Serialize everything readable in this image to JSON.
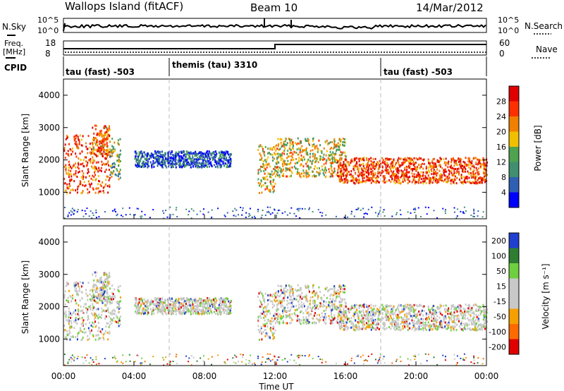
{
  "header": {
    "station": "Wallops Island (fitACF)",
    "beam": "Beam 10",
    "date": "14/Mar/2012"
  },
  "noise_panel": {
    "left_label": "N.Sky",
    "right_label": "N.Search",
    "left_ticks": [
      "10^5",
      "10^0"
    ],
    "right_ticks": [
      "10^5",
      "10^0"
    ]
  },
  "freq_panel": {
    "left_label_line1": "Freq.",
    "left_label_line2": "[MHz]",
    "right_label": "Nave",
    "left_ticks": [
      "18",
      "8"
    ],
    "right_ticks": [
      "60",
      "0"
    ],
    "cpid_label": "CPID"
  },
  "cpid_segments": [
    {
      "name": "tau (fast) -503",
      "start_hour": 0
    },
    {
      "name": "themis (tau) 3310",
      "start_hour": 6
    },
    {
      "name": "tau (fast) -503",
      "start_hour": 18
    }
  ],
  "colors": {
    "power": [
      "#0000ff",
      "#2f5fb2",
      "#3f8f70",
      "#4fa34f",
      "#f0c000",
      "#f08000",
      "#ff3000",
      "#e00000"
    ],
    "velocity": [
      "#1f3fd0",
      "#2e7d32",
      "#6fcf3f",
      "#c8c8c8",
      "#c8c8c8",
      "#f5a000",
      "#ff6a00",
      "#e00000"
    ]
  },
  "chart_data": [
    {
      "type": "heatmap",
      "name": "power",
      "ylabel": "Slant Range [km]",
      "xlabel": "Time UT",
      "yticks": [
        "1000",
        "2000",
        "3000",
        "4000"
      ],
      "ylim": [
        180,
        4500
      ],
      "xlim": [
        0,
        24
      ],
      "colorbar_label": "Power [dB]",
      "colorbar_ticks": [
        "4",
        "8",
        "12",
        "16",
        "20",
        "24",
        "28"
      ],
      "echo_bands": [
        {
          "t0": 0.0,
          "t1": 2.6,
          "r0": 1000,
          "r1": 2800,
          "level": 6
        },
        {
          "t0": 1.6,
          "t1": 2.6,
          "r0": 2200,
          "r1": 3100,
          "level": 5
        },
        {
          "t0": 2.6,
          "t1": 3.2,
          "r0": 1400,
          "r1": 2700,
          "level": 3
        },
        {
          "t0": 4.0,
          "t1": 9.5,
          "r0": 1800,
          "r1": 2300,
          "level": 1
        },
        {
          "t0": 11.0,
          "t1": 12.0,
          "r0": 1000,
          "r1": 2500,
          "level": 4
        },
        {
          "t0": 12.0,
          "t1": 16.0,
          "r0": 1500,
          "r1": 2700,
          "level": 4
        },
        {
          "t0": 15.5,
          "t1": 24.0,
          "r0": 1300,
          "r1": 2100,
          "level": 6
        }
      ]
    },
    {
      "type": "heatmap",
      "name": "velocity",
      "ylabel": "Slant Range [km]",
      "xlabel": "Time UT",
      "yticks": [
        "1000",
        "2000",
        "3000",
        "4000"
      ],
      "ylim": [
        180,
        4500
      ],
      "xlim": [
        0,
        24
      ],
      "xticks": [
        "00:00",
        "04:00",
        "08:00",
        "12:00",
        "16:00",
        "20:00",
        "00:00"
      ],
      "colorbar_label": "Velocity [m s⁻¹]",
      "colorbar_ticks": [
        "200",
        "100",
        "50",
        "15",
        "-15",
        "-50",
        "-100",
        "-200"
      ]
    }
  ]
}
